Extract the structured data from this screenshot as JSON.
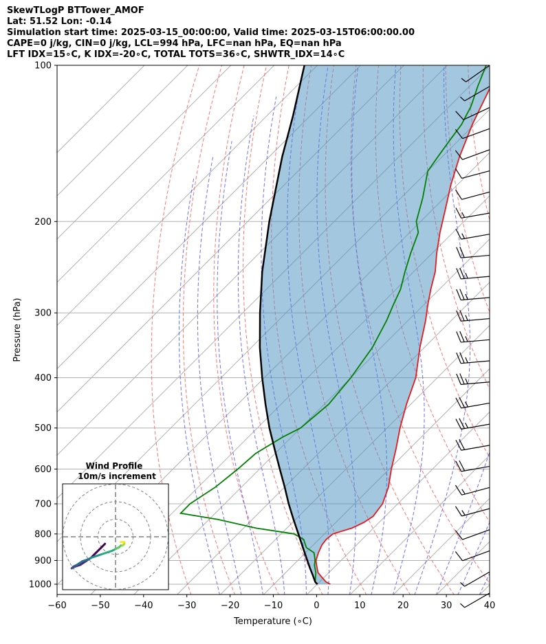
{
  "header": {
    "line1": "SkewTLogP BTTower_AMOF",
    "line2": "Lat: 51.52   Lon: -0.14",
    "line3": "Simulation start time: 2025-03-15_00:00:00, Valid time: 2025-03-15T06:00:00.00",
    "line4": "CAPE=0 j/kg, CIN=0 j/kg, LCL=994 hPa, LFC=nan hPa, EQ=nan hPa",
    "line5": "LFT IDX=15∘C, K IDX=-20∘C, TOTAL TOTS=36∘C, SHWTR_IDX=14∘C"
  },
  "chart_data": {
    "type": "line",
    "xlabel": "Temperature (∘C)",
    "ylabel": "Pressure (hPa)",
    "xlim": [
      -60,
      40
    ],
    "ylim": [
      1050,
      100
    ],
    "yscale": "log",
    "skew": "45 degrees",
    "grid": true,
    "x_ticks": [
      "−60",
      "−50",
      "−40",
      "−30",
      "−20",
      "−10",
      "0",
      "10",
      "20",
      "30",
      "40"
    ],
    "y_ticks": [
      "100",
      "200",
      "300",
      "400",
      "500",
      "600",
      "700",
      "800",
      "900",
      "1000"
    ],
    "series": [
      {
        "color": "#e41a1c",
        "points": [
          [
            1000,
            3
          ],
          [
            990,
            1.5
          ],
          [
            970,
            -0.5
          ],
          [
            950,
            -2.5
          ],
          [
            920,
            -4.5
          ],
          [
            900,
            -5.8
          ],
          [
            870,
            -7
          ],
          [
            840,
            -8
          ],
          [
            820,
            -8.3
          ],
          [
            800,
            -8
          ],
          [
            780,
            -5
          ],
          [
            760,
            -3.5
          ],
          [
            740,
            -2.8
          ],
          [
            700,
            -3.5
          ],
          [
            650,
            -6
          ],
          [
            600,
            -9.5
          ],
          [
            550,
            -13
          ],
          [
            500,
            -17
          ],
          [
            450,
            -21
          ],
          [
            400,
            -25
          ],
          [
            350,
            -31
          ],
          [
            310,
            -36
          ],
          [
            290,
            -39
          ],
          [
            270,
            -42
          ],
          [
            250,
            -45
          ],
          [
            230,
            -49
          ],
          [
            210,
            -53
          ],
          [
            190,
            -57
          ],
          [
            170,
            -61.5
          ],
          [
            150,
            -66
          ],
          [
            130,
            -70.5
          ],
          [
            110,
            -75
          ],
          [
            100,
            -78
          ]
        ]
      },
      {
        "color": "#008000",
        "points": [
          [
            1000,
            0
          ],
          [
            990,
            -1
          ],
          [
            970,
            -2
          ],
          [
            950,
            -3
          ],
          [
            920,
            -5
          ],
          [
            900,
            -6
          ],
          [
            870,
            -8
          ],
          [
            850,
            -11
          ],
          [
            820,
            -13.5
          ],
          [
            800,
            -17
          ],
          [
            780,
            -27
          ],
          [
            750,
            -38
          ],
          [
            730,
            -48
          ],
          [
            700,
            -48
          ],
          [
            650,
            -46
          ],
          [
            600,
            -45
          ],
          [
            560,
            -44.5
          ],
          [
            520,
            -42
          ],
          [
            500,
            -40
          ],
          [
            450,
            -39
          ],
          [
            400,
            -40
          ],
          [
            350,
            -42
          ],
          [
            310,
            -45
          ],
          [
            290,
            -47
          ],
          [
            270,
            -49
          ],
          [
            250,
            -52
          ],
          [
            230,
            -55
          ],
          [
            210,
            -58
          ],
          [
            200,
            -61
          ],
          [
            180,
            -65
          ],
          [
            160,
            -70
          ],
          [
            150,
            -71
          ],
          [
            140,
            -72
          ],
          [
            130,
            -73
          ],
          [
            120,
            -75
          ],
          [
            110,
            -78
          ],
          [
            100,
            -81
          ]
        ]
      },
      {
        "color": "#000000",
        "points": [
          [
            1000,
            0
          ],
          [
            990,
            -1
          ],
          [
            960,
            -3.2
          ],
          [
            930,
            -5.5
          ],
          [
            900,
            -7.8
          ],
          [
            850,
            -11.8
          ],
          [
            800,
            -16
          ],
          [
            750,
            -20.5
          ],
          [
            700,
            -25.2
          ],
          [
            650,
            -30
          ],
          [
            600,
            -35.3
          ],
          [
            550,
            -41
          ],
          [
            500,
            -47.2
          ],
          [
            450,
            -53.6
          ],
          [
            400,
            -60.5
          ],
          [
            350,
            -68
          ],
          [
            300,
            -76
          ],
          [
            250,
            -85
          ],
          [
            200,
            -95
          ],
          [
            150,
            -107
          ],
          [
            125,
            -114
          ],
          [
            100,
            -123
          ]
        ]
      }
    ],
    "wind_barbs": {
      "speeds_kt": [
        5,
        5,
        10,
        10,
        15,
        15,
        20,
        20,
        25,
        25,
        25,
        25,
        25,
        25,
        25,
        25,
        20,
        15,
        15,
        10,
        10,
        10,
        10,
        10,
        5,
        5
      ],
      "directions_deg": [
        240,
        240,
        250,
        250,
        255,
        255,
        260,
        260,
        260,
        260,
        265,
        265,
        265,
        265,
        265,
        265,
        265,
        260,
        260,
        255,
        255,
        250,
        250,
        245,
        240,
        235
      ]
    },
    "hodograph": {
      "title": "Wind Profile",
      "subtitle": "10m/s increment",
      "rings_ms": [
        10,
        20,
        30
      ],
      "colormap": "viridis",
      "u": [
        -6,
        -8,
        -11,
        -14,
        -17,
        -20,
        -23,
        -25,
        -24,
        -22,
        -19,
        -16,
        -14,
        -11,
        -8,
        -5,
        -2,
        0,
        2,
        3,
        4,
        5,
        5,
        5,
        4,
        3
      ],
      "v": [
        -4,
        -6,
        -9,
        -12,
        -14,
        -16,
        -17,
        -18,
        -17,
        -16,
        -14,
        -13,
        -12,
        -11,
        -10,
        -9,
        -8,
        -7,
        -6,
        -5,
        -5,
        -4,
        -4,
        -3,
        -3,
        -3
      ]
    }
  }
}
